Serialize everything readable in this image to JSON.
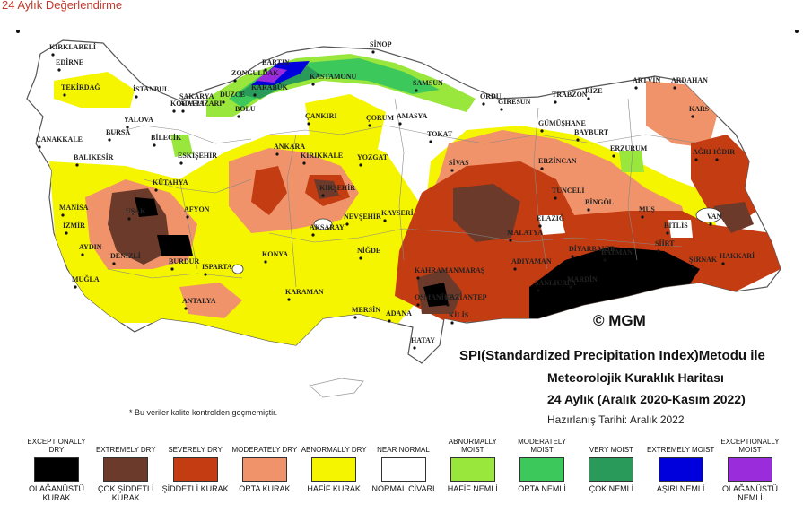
{
  "page_caption": "24 Aylık Değerlendirme",
  "title": {
    "line1": "SPI(Standardized Precipitation Index)Metodu ile",
    "line2": "Meteorolojik Kuraklık Haritası",
    "line3": "24 Aylık (Aralık 2020-Kasım 2022)"
  },
  "prepared": "Hazırlanış Tarihi: Aralık 2022",
  "credit": "© MGM",
  "note": "* Bu veriler kalite kontrolden geçmemiştir.",
  "colors": {
    "exceptionally_dry": "#000000",
    "extremely_dry": "#6b3a2a",
    "severely_dry": "#c43c12",
    "moderately_dry": "#f0936a",
    "abnormally_dry": "#f5f500",
    "near_normal": "#ffffff",
    "abnormally_moist": "#99e63c",
    "moderately_moist": "#3cc85a",
    "very_moist": "#2a9a5a",
    "extremely_moist": "#0000dd",
    "exceptionally_moist": "#9a2cdc",
    "sea": "#ffffff",
    "border": "#777777"
  },
  "legend": [
    {
      "en": "EXCEPTIONALLY DRY",
      "tr": "OLAĞANÜSTÜ KURAK",
      "color": "#000000"
    },
    {
      "en": "EXTREMELY DRY",
      "tr": "ÇOK ŞİDDETLİ KURAK",
      "color": "#6b3a2a"
    },
    {
      "en": "SEVERELY DRY",
      "tr": "ŞİDDETLİ KURAK",
      "color": "#c43c12"
    },
    {
      "en": "MODERATELY DRY",
      "tr": "ORTA KURAK",
      "color": "#f0936a"
    },
    {
      "en": "ABNORMALLY DRY",
      "tr": "HAFİF KURAK",
      "color": "#f5f500"
    },
    {
      "en": "NEAR NORMAL",
      "tr": "NORMAL CİVARI",
      "color": "#ffffff"
    },
    {
      "en": "ABNORMALLY MOIST",
      "tr": "HAFİF NEMLİ",
      "color": "#99e63c"
    },
    {
      "en": "MODERATELY MOIST",
      "tr": "ORTA NEMLİ",
      "color": "#3cc85a"
    },
    {
      "en": "VERY MOIST",
      "tr": "ÇOK NEMLİ",
      "color": "#2a9a5a"
    },
    {
      "en": "EXTREMELY MOIST",
      "tr": "AŞIRI NEMLİ",
      "color": "#0000dd"
    },
    {
      "en": "EXCEPTIONALLY MOIST",
      "tr": "OLAĞANÜSTÜ NEMLİ",
      "color": "#9a2cdc"
    }
  ],
  "cities": [
    "KIRKLARELİ",
    "EDİRNE",
    "TEKİRDAĞ",
    "İSTANBUL",
    "ÇANAKKALE",
    "BALIKESİR",
    "BURSA",
    "YALOVA",
    "KOCAELİ",
    "SAKARYA",
    "DÜZCE",
    "BOLU",
    "ZONGULDAK",
    "BARTIN",
    "KARABÜK",
    "KASTAMONU",
    "SİNOP",
    "SAMSUN",
    "ORDU",
    "GİRESUN",
    "TRABZON",
    "RİZE",
    "ARTVİN",
    "ARDAHAN",
    "KARS",
    "IĞDIR",
    "AĞRI",
    "ERZURUM",
    "BAYBURT",
    "GÜMÜŞHANE",
    "ERZİNCAN",
    "TUNCELİ",
    "BİNGÖL",
    "MUŞ",
    "BİTLİS",
    "VAN",
    "HAKKARİ",
    "ŞIRNAK",
    "SİİRT",
    "BATMAN",
    "DİYARBAKIR",
    "MARDİN",
    "ŞANLIURFA",
    "ADIYAMAN",
    "MALATYA",
    "ELAZIĞ",
    "GAZİANTEP",
    "KİLİS",
    "OSMANİYE",
    "HATAY",
    "ADANA",
    "MERSİN",
    "KAHRAMANMARAŞ",
    "SİVAS",
    "TOKAT",
    "AMASYA",
    "ÇORUM",
    "YOZGAT",
    "KAYSERİ",
    "NEVŞEHİR",
    "NİĞDE",
    "AKSARAY",
    "KIRŞEHİR",
    "KIRIKKALE",
    "ANKARA",
    "ÇANKIRI",
    "ESKİŞEHİR",
    "BİLECİK",
    "KÜTAHYA",
    "AFYON",
    "UŞAK",
    "MANİSA",
    "İZMİR",
    "AYDIN",
    "DENİZLİ",
    "MUĞLA",
    "BURDUR",
    "ISPARTA",
    "ANTALYA",
    "KONYA",
    "KARAMAN",
    "ADAPAZARI"
  ]
}
